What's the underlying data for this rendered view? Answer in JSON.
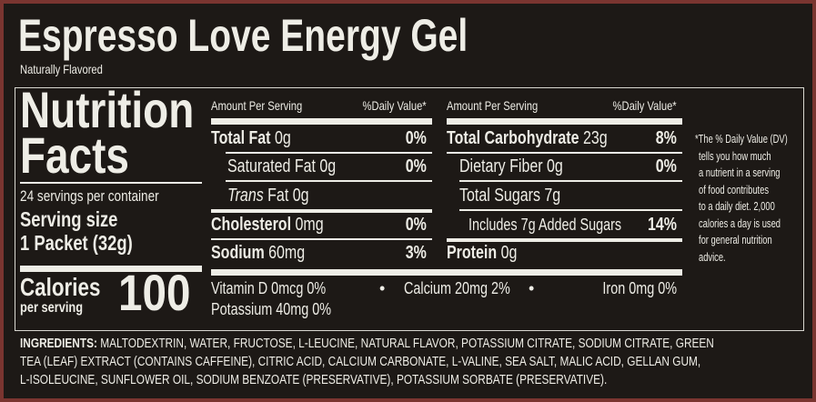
{
  "title": "Espresso Love Energy Gel",
  "subtitle": "Naturally Flavored",
  "panel": {
    "heading_line1": "Nutrition",
    "heading_line2": "Facts",
    "servings": "24 servings per container",
    "serving_size_label": "Serving size",
    "serving_size_value": "1 Packet (32g)",
    "calories_label": "Calories",
    "calories_sub": "per serving",
    "calories_value": "100"
  },
  "col1": {
    "amount_header": "Amount Per Serving",
    "dv_header": "%Daily Value*",
    "rows": [
      {
        "name": "Total Fat",
        "amount": "0g",
        "dv": "0%"
      },
      {
        "name": "Saturated Fat",
        "amount": "0g",
        "dv": "0%"
      },
      {
        "name": "Trans",
        "name2": "Fat",
        "amount": "0g",
        "dv": ""
      },
      {
        "name": "Cholesterol",
        "amount": "0mg",
        "dv": "0%"
      },
      {
        "name": "Sodium",
        "amount": "60mg",
        "dv": "3%"
      }
    ]
  },
  "col2": {
    "amount_header": "Amount Per Serving",
    "dv_header": "%Daily Value*",
    "rows": [
      {
        "name": "Total Carbohydrate",
        "amount": "23g",
        "dv": "8%"
      },
      {
        "name": "Dietary Fiber",
        "amount": "0g",
        "dv": "0%"
      },
      {
        "name": "Total Sugars",
        "amount": "7g",
        "dv": ""
      },
      {
        "name": "Includes 7g Added Sugars",
        "amount": "",
        "dv": "14%"
      },
      {
        "name": "Protein",
        "amount": "0g",
        "dv": ""
      }
    ]
  },
  "vitamins": {
    "line1": [
      "Vitamin D  0mcg  0%",
      "Calcium  20mg 2%",
      "Iron  0mg  0%"
    ],
    "line2": "Potassium  40mg  0%"
  },
  "footnote": [
    "*The % Daily Value (DV)",
    "tells you how much",
    "a nutrient in a serving",
    "of food contributes",
    "to a daily diet. 2,000",
    "calories a day is used",
    "for general nutrition",
    "advice."
  ],
  "ingredients": {
    "label": "INGREDIENTS:",
    "lines": [
      " MALTODEXTRIN, WATER, FRUCTOSE, L-LEUCINE, NATURAL FLAVOR, POTASSIUM CITRATE, SODIUM CITRATE, GREEN",
      "TEA (LEAF) EXTRACT (CONTAINS CAFFEINE), CITRIC ACID, CALCIUM CARBONATE, L-VALINE, SEA SALT, MALIC ACID, GELLAN GUM,",
      "L-ISOLEUCINE, SUNFLOWER OIL, SODIUM BENZOATE (PRESERVATIVE), POTASSIUM SORBATE (PRESERVATIVE)."
    ]
  },
  "colors": {
    "background": "#1d1916",
    "text": "#eeede6",
    "frame": "#7a3530"
  }
}
